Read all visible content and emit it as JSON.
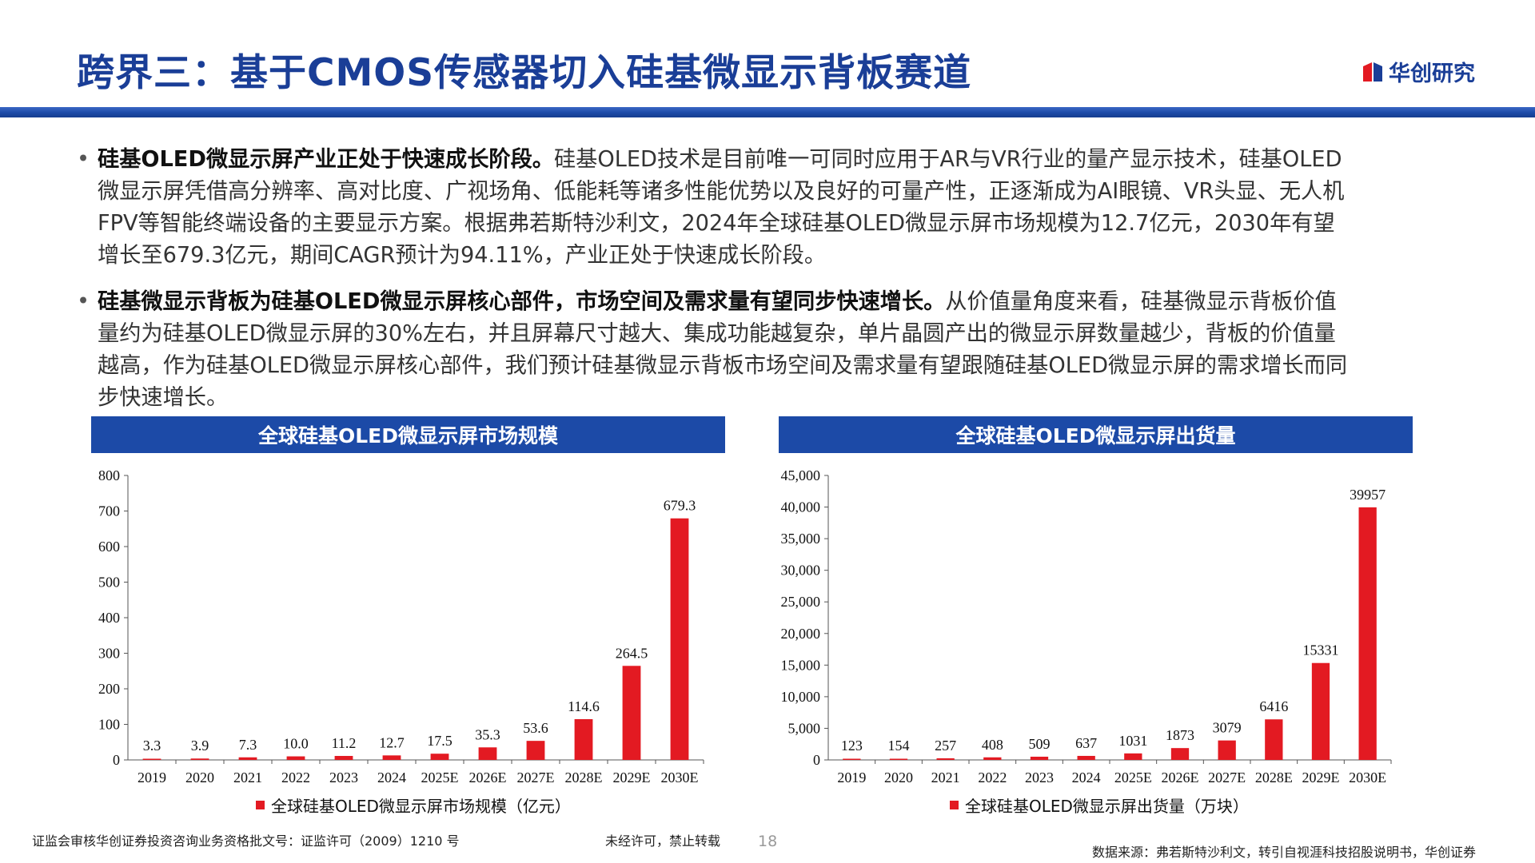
{
  "title": "跨界三：基于CMOS传感器切入硅基微显示背板赛道",
  "logo": {
    "text": "华创研究",
    "colors": [
      "#e31a22",
      "#1a3e97"
    ]
  },
  "accent_color": "#1c4aa7",
  "bar_color": "#e31a22",
  "bullets": [
    {
      "bold": "硅基OLED微显示屏产业正处于快速成长阶段。",
      "text": "硅基OLED技术是目前唯一可同时应用于AR与VR行业的量产显示技术，硅基OLED微显示屏凭借高分辨率、高对比度、广视场角、低能耗等诸多性能优势以及良好的可量产性，正逐渐成为AI眼镜、VR头显、无人机FPV等智能终端设备的主要显示方案。根据弗若斯特沙利文，2024年全球硅基OLED微显示屏市场规模为12.7亿元，2030年有望增长至679.3亿元，期间CAGR预计为94.11%，产业正处于快速成长阶段。"
    },
    {
      "bold": "硅基微显示背板为硅基OLED微显示屏核心部件，市场空间及需求量有望同步快速增长。",
      "text": "从价值量角度来看，硅基微显示背板价值量约为硅基OLED微显示屏的30%左右，并且屏幕尺寸越大、集成功能越复杂，单片晶圆产出的微显示屏数量越少，背板的价值量越高，作为硅基OLED微显示屏核心部件，我们预计硅基微显示背板市场空间及需求量有望跟随硅基OLED微显示屏的需求增长而同步快速增长。"
    }
  ],
  "chart_data": [
    {
      "type": "bar",
      "title": "全球硅基OLED微显示屏市场规模",
      "categories": [
        "2019",
        "2020",
        "2021",
        "2022",
        "2023",
        "2024",
        "2025E",
        "2026E",
        "2027E",
        "2028E",
        "2029E",
        "2030E"
      ],
      "series": [
        {
          "name": "全球硅基OLED微显示屏市场规模（亿元）",
          "values": [
            3.3,
            3.9,
            7.3,
            10.0,
            11.2,
            12.7,
            17.5,
            35.3,
            53.6,
            114.6,
            264.5,
            679.3
          ]
        }
      ],
      "value_labels": [
        "3.3",
        "3.9",
        "7.3",
        "10.0",
        "11.2",
        "12.7",
        "17.5",
        "35.3",
        "53.6",
        "114.6",
        "264.5",
        "679.3"
      ],
      "ylim": [
        0,
        800
      ],
      "yticks": [
        0,
        100,
        200,
        300,
        400,
        500,
        600,
        700,
        800
      ],
      "ytick_labels": [
        "0",
        "100",
        "200",
        "300",
        "400",
        "500",
        "600",
        "700",
        "800"
      ],
      "grid": false,
      "legend": "bottom"
    },
    {
      "type": "bar",
      "title": "全球硅基OLED微显示屏出货量",
      "categories": [
        "2019",
        "2020",
        "2021",
        "2022",
        "2023",
        "2024",
        "2025E",
        "2026E",
        "2027E",
        "2028E",
        "2029E",
        "2030E"
      ],
      "series": [
        {
          "name": "全球硅基OLED微显示屏出货量（万块）",
          "values": [
            123,
            154,
            257,
            408,
            509,
            637,
            1031,
            1873,
            3079,
            6416,
            15331,
            39957
          ]
        }
      ],
      "value_labels": [
        "123",
        "154",
        "257",
        "408",
        "509",
        "637",
        "1031",
        "1873",
        "3079",
        "6416",
        "15331",
        "39957"
      ],
      "ylim": [
        0,
        45000
      ],
      "yticks": [
        0,
        5000,
        10000,
        15000,
        20000,
        25000,
        30000,
        35000,
        40000,
        45000
      ],
      "ytick_labels": [
        "0",
        "5,000",
        "10,000",
        "15,000",
        "20,000",
        "25,000",
        "30,000",
        "35,000",
        "40,000",
        "45,000"
      ],
      "grid": false,
      "legend": "bottom"
    }
  ],
  "footer": {
    "license": "证监会审核华创证券投资咨询业务资格批文号：证监许可（2009）1210 号",
    "notice": "未经许可，禁止转载",
    "page": "18",
    "source": "数据来源：弗若斯特沙利文，转引自视涯科技招股说明书，华创证券"
  }
}
